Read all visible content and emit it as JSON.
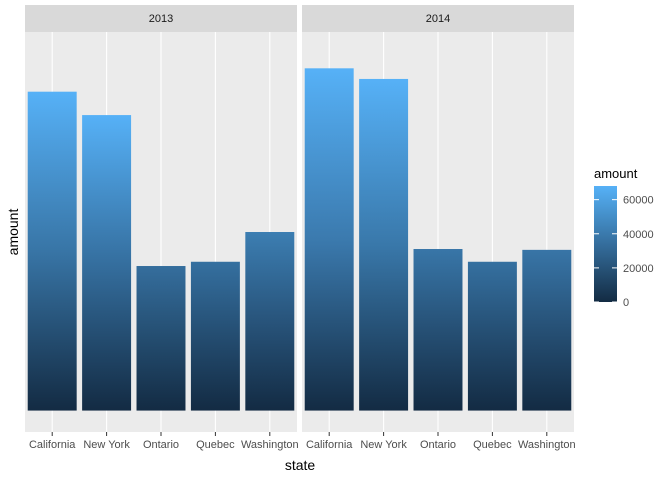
{
  "chart_data": {
    "type": "bar",
    "categories": [
      "California",
      "New York",
      "Ontario",
      "Quebec",
      "Washington"
    ],
    "facets": [
      {
        "label": "2013",
        "values": [
          75000,
          69500,
          34000,
          35000,
          42000
        ]
      },
      {
        "label": "2014",
        "values": [
          80500,
          78000,
          38000,
          35000,
          37800
        ]
      }
    ],
    "xlabel": "state",
    "ylabel": "amount",
    "ylim": [
      0,
      84000
    ],
    "y_ticks_shown": false,
    "grid": true,
    "fill_scale": {
      "title": "amount",
      "breaks": [
        0,
        20000,
        40000,
        60000
      ],
      "break_labels": [
        "0",
        "20000",
        "40000",
        "60000"
      ],
      "range": [
        0,
        68000
      ],
      "low_color": "#132b43",
      "high_color": "#56b1f7"
    },
    "legend_position": "right",
    "panel_background": "#ebebeb",
    "strip_background": "#d9d9d9",
    "bar_shading": "vertical gradient by amount"
  }
}
